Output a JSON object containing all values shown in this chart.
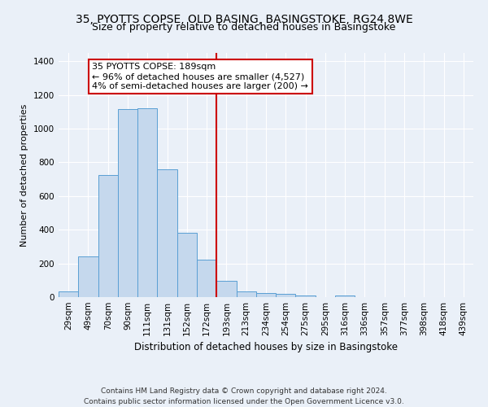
{
  "title1": "35, PYOTTS COPSE, OLD BASING, BASINGSTOKE, RG24 8WE",
  "title2": "Size of property relative to detached houses in Basingstoke",
  "xlabel": "Distribution of detached houses by size in Basingstoke",
  "ylabel": "Number of detached properties",
  "categories": [
    "29sqm",
    "49sqm",
    "70sqm",
    "90sqm",
    "111sqm",
    "131sqm",
    "152sqm",
    "172sqm",
    "193sqm",
    "213sqm",
    "234sqm",
    "254sqm",
    "275sqm",
    "295sqm",
    "316sqm",
    "336sqm",
    "357sqm",
    "377sqm",
    "398sqm",
    "418sqm",
    "439sqm"
  ],
  "values": [
    35,
    240,
    725,
    1115,
    1120,
    760,
    380,
    220,
    95,
    35,
    25,
    17,
    12,
    0,
    10,
    0,
    0,
    0,
    0,
    0,
    0
  ],
  "bar_color": "#c5d8ed",
  "bar_edge_color": "#5a9fd4",
  "vline_index": 8,
  "annotation_title": "35 PYOTTS COPSE: 189sqm",
  "annotation_line1": "← 96% of detached houses are smaller (4,527)",
  "annotation_line2": "4% of semi-detached houses are larger (200) →",
  "annotation_box_color": "#ffffff",
  "annotation_box_edge_color": "#cc0000",
  "vline_color": "#cc0000",
  "ylim": [
    0,
    1450
  ],
  "yticks": [
    0,
    200,
    400,
    600,
    800,
    1000,
    1200,
    1400
  ],
  "footer1": "Contains HM Land Registry data © Crown copyright and database right 2024.",
  "footer2": "Contains public sector information licensed under the Open Government Licence v3.0.",
  "background_color": "#eaf0f8",
  "plot_background_color": "#eaf0f8",
  "title1_fontsize": 10,
  "title2_fontsize": 9,
  "xlabel_fontsize": 8.5,
  "ylabel_fontsize": 8,
  "tick_fontsize": 7.5,
  "annotation_fontsize": 8,
  "footer_fontsize": 6.5
}
